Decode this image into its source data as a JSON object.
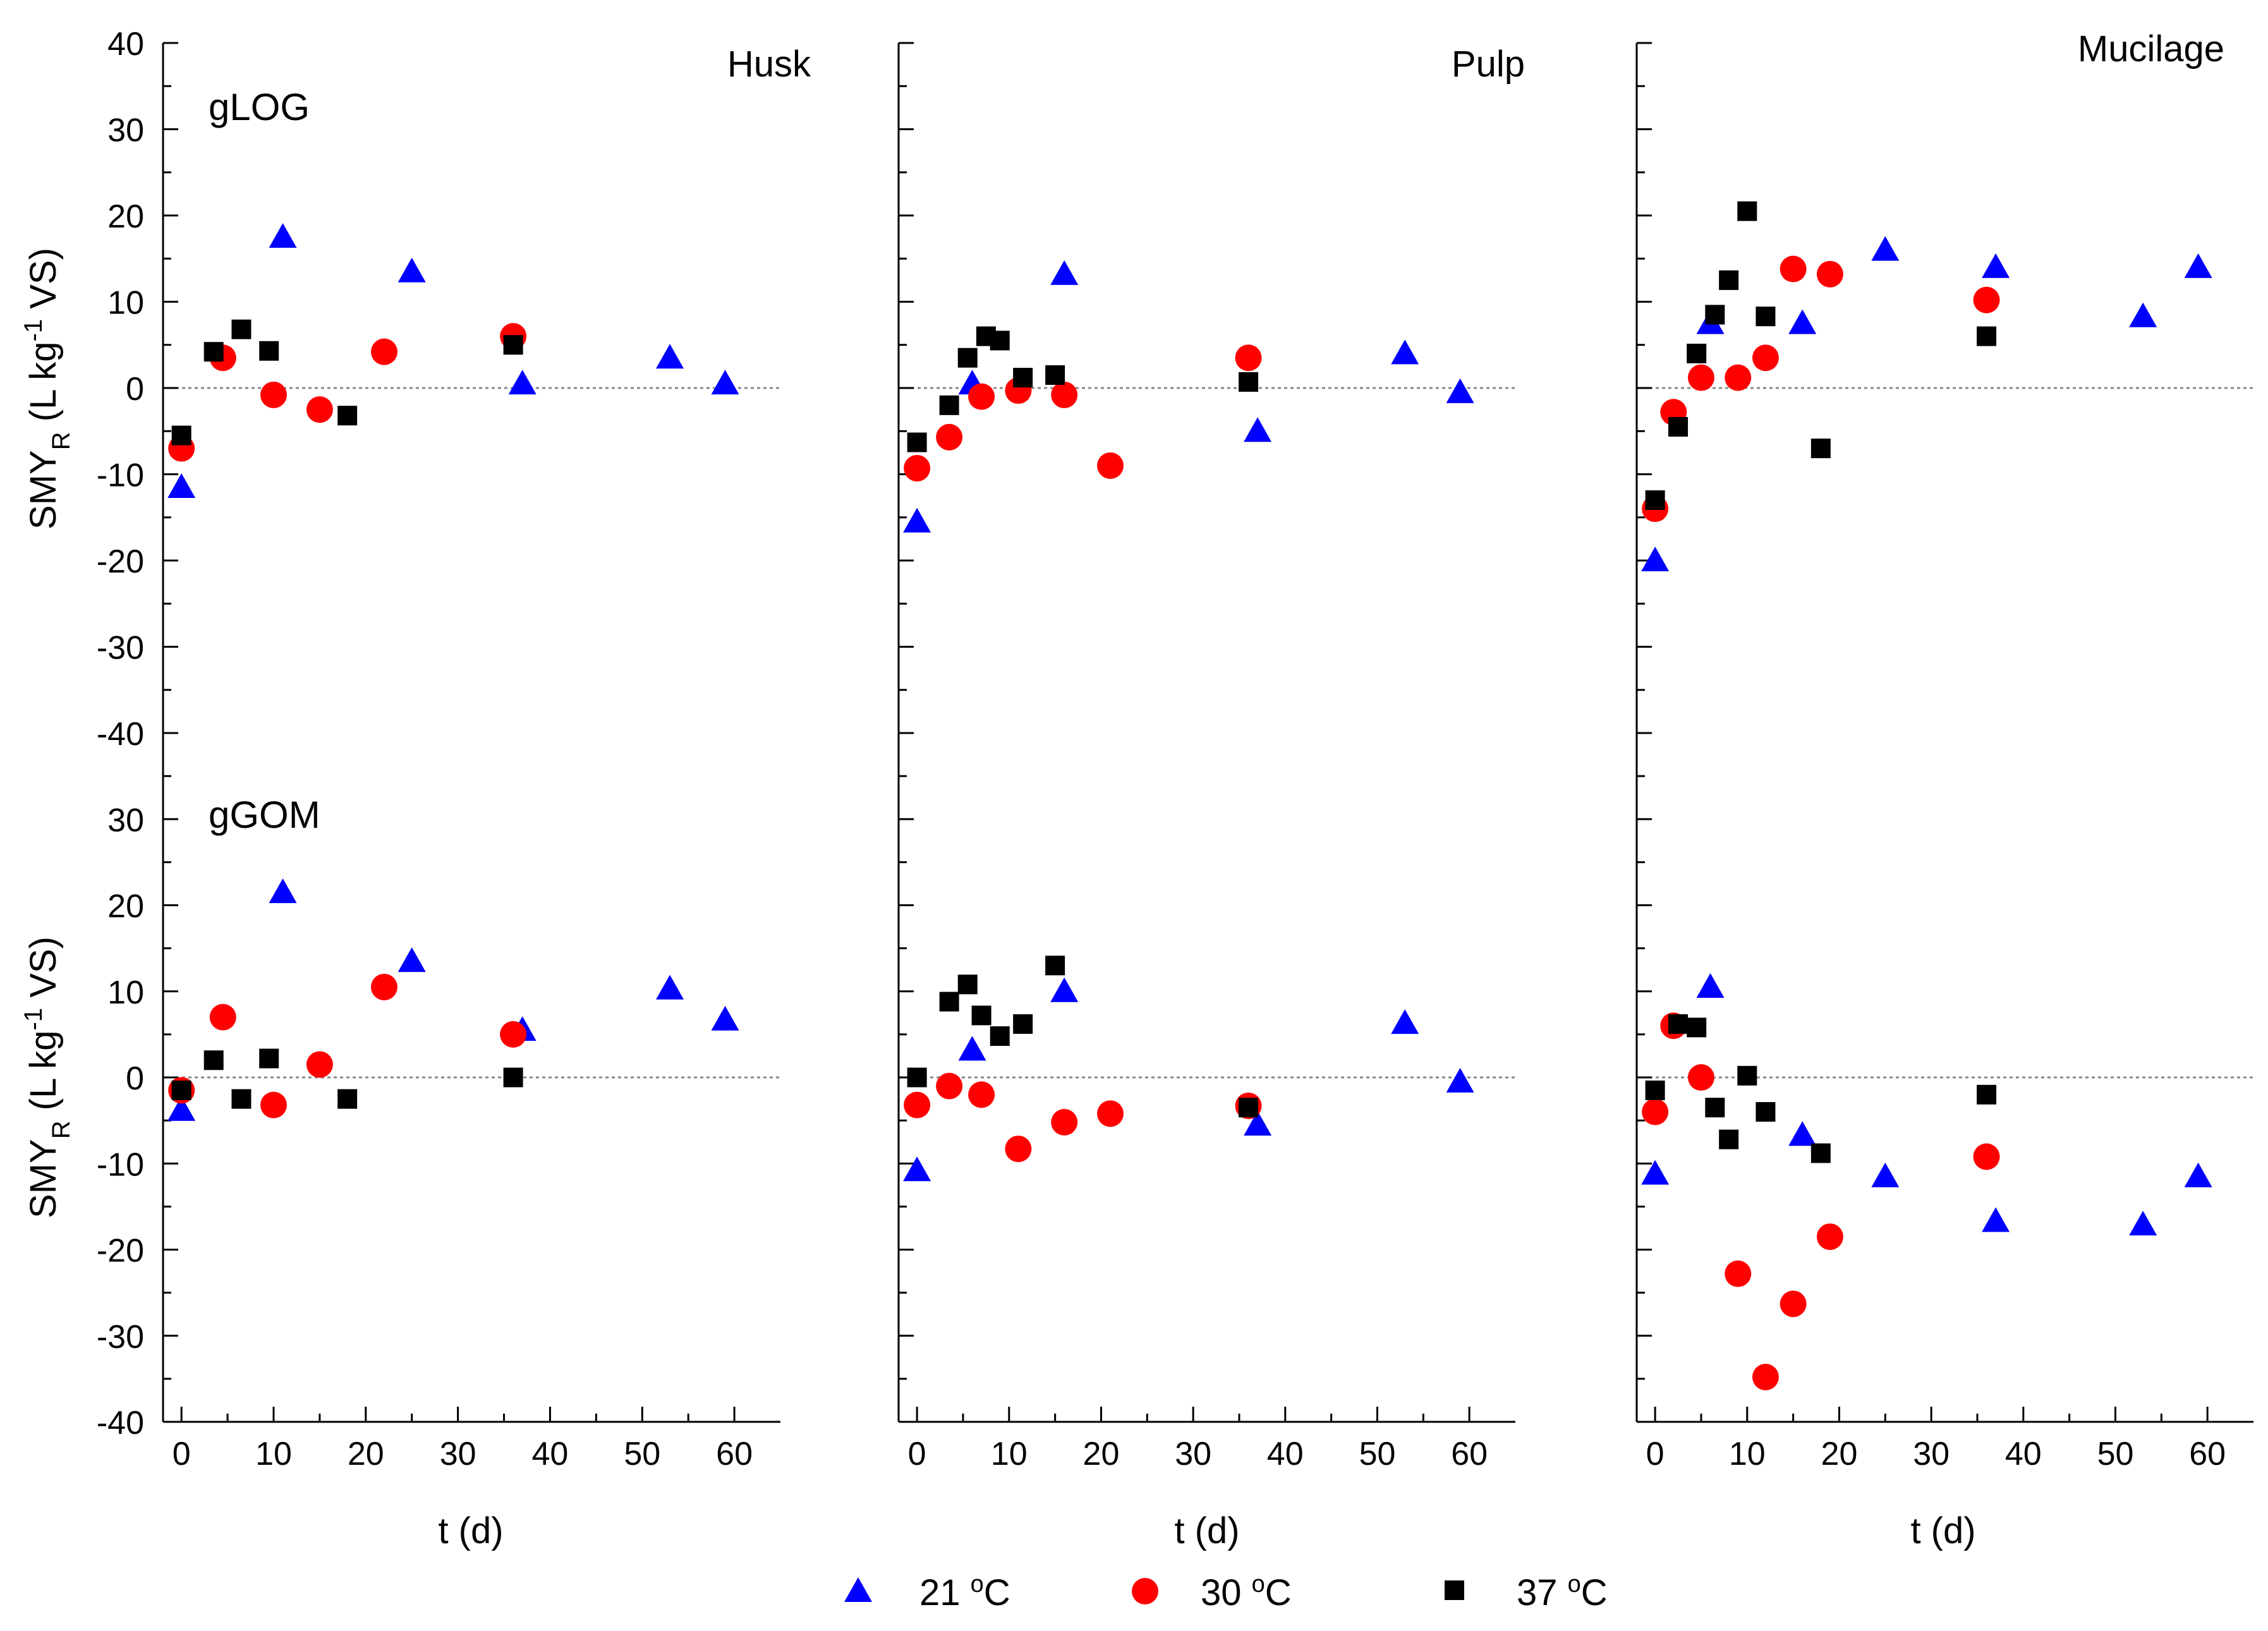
{
  "chart_data": {
    "type": "scatter",
    "layout": "2 rows x 3 columns, shared axes",
    "xlabel": "t (d)",
    "ylabel_main": "SMY",
    "ylabel_sub": "R",
    "ylabel_tail": " (L kg",
    "ylabel_sup": "-1",
    "ylabel_end": " VS)",
    "xlim": [
      -2,
      65
    ],
    "ylim": [
      -40,
      40
    ],
    "x_ticks": [
      "0",
      "10",
      "20",
      "30",
      "40",
      "50",
      "60"
    ],
    "y_ticks_top": [
      "40",
      "30",
      "20",
      "10",
      "0",
      "-10",
      "-20",
      "-30",
      "-40"
    ],
    "y_ticks_bottom": [
      "30",
      "20",
      "10",
      "0",
      "-10",
      "-20",
      "-30",
      "-40"
    ],
    "column_titles": [
      "Husk",
      "Pulp",
      "Mucilage"
    ],
    "row_labels": [
      "gLOG",
      "gGOM"
    ],
    "legend": [
      {
        "name": "21",
        "unit_sup": "o",
        "unit": "C",
        "marker": "triangle",
        "color": "#0000ff"
      },
      {
        "name": "30",
        "unit_sup": "o",
        "unit": "C",
        "marker": "circle",
        "color": "#ff0000"
      },
      {
        "name": "37",
        "unit_sup": "o",
        "unit": "C",
        "marker": "square",
        "color": "#000000"
      }
    ],
    "panels": [
      {
        "row": "gLOG",
        "column": "Husk",
        "series": [
          {
            "name": "21 oC",
            "points": [
              [
                0,
                -11.5
              ],
              [
                11,
                17.5
              ],
              [
                25,
                13.5
              ],
              [
                37,
                0.5
              ],
              [
                53,
                3.5
              ],
              [
                59,
                0.5
              ]
            ]
          },
          {
            "name": "30 oC",
            "points": [
              [
                0,
                -7
              ],
              [
                4.5,
                3.5
              ],
              [
                10,
                -0.8
              ],
              [
                15,
                -2.5
              ],
              [
                22,
                4.2
              ],
              [
                36,
                6
              ]
            ]
          },
          {
            "name": "37 oC",
            "points": [
              [
                0,
                -5.5
              ],
              [
                3.5,
                4.2
              ],
              [
                6.5,
                6.8
              ],
              [
                9.5,
                4.3
              ],
              [
                18,
                -3.2
              ],
              [
                36,
                5
              ]
            ]
          }
        ]
      },
      {
        "row": "gLOG",
        "column": "Pulp",
        "series": [
          {
            "name": "21 oC",
            "points": [
              [
                0,
                -15.5
              ],
              [
                6,
                0.5
              ],
              [
                16,
                13.2
              ],
              [
                37,
                -5
              ],
              [
                53,
                4
              ],
              [
                59,
                -0.5
              ]
            ]
          },
          {
            "name": "30 oC",
            "points": [
              [
                0,
                -9.3
              ],
              [
                3.5,
                -5.7
              ],
              [
                7,
                -1
              ],
              [
                11,
                -0.3
              ],
              [
                16,
                -0.8
              ],
              [
                21,
                -9
              ],
              [
                36,
                3.5
              ]
            ]
          },
          {
            "name": "37 oC",
            "points": [
              [
                0,
                -6.3
              ],
              [
                3.5,
                -2
              ],
              [
                5.5,
                3.5
              ],
              [
                7.5,
                6
              ],
              [
                9,
                5.5
              ],
              [
                11.5,
                1.2
              ],
              [
                15,
                1.5
              ],
              [
                36,
                0.7
              ]
            ]
          }
        ]
      },
      {
        "row": "gLOG",
        "column": "Mucilage",
        "series": [
          {
            "name": "21 oC",
            "points": [
              [
                0,
                -20
              ],
              [
                6,
                7.5
              ],
              [
                16,
                7.5
              ],
              [
                25,
                16
              ],
              [
                37,
                14
              ],
              [
                53,
                8.3
              ],
              [
                59,
                14
              ]
            ]
          },
          {
            "name": "30 oC",
            "points": [
              [
                0,
                -14
              ],
              [
                2,
                -2.8
              ],
              [
                5,
                1.2
              ],
              [
                9,
                1.2
              ],
              [
                12,
                3.5
              ],
              [
                15,
                13.8
              ],
              [
                19,
                13.2
              ],
              [
                36,
                10.2
              ]
            ]
          },
          {
            "name": "37 oC",
            "points": [
              [
                0,
                -13
              ],
              [
                2.5,
                -4.5
              ],
              [
                4.5,
                4
              ],
              [
                6.5,
                8.5
              ],
              [
                8,
                12.5
              ],
              [
                10,
                20.5
              ],
              [
                12,
                8.3
              ],
              [
                18,
                -7
              ],
              [
                36,
                6
              ]
            ]
          }
        ]
      },
      {
        "row": "gGOM",
        "column": "Husk",
        "series": [
          {
            "name": "21 oC",
            "points": [
              [
                0,
                -3.8
              ],
              [
                11,
                21.5
              ],
              [
                25,
                13.5
              ],
              [
                37,
                5.5
              ],
              [
                53,
                10.3
              ],
              [
                59,
                6.7
              ]
            ]
          },
          {
            "name": "30 oC",
            "points": [
              [
                0,
                -1.5
              ],
              [
                4.5,
                7
              ],
              [
                10,
                -3.2
              ],
              [
                15,
                1.5
              ],
              [
                22,
                10.5
              ],
              [
                36,
                5
              ]
            ]
          },
          {
            "name": "37 oC",
            "points": [
              [
                0,
                -1.5
              ],
              [
                3.5,
                2
              ],
              [
                6.5,
                -2.5
              ],
              [
                9.5,
                2.2
              ],
              [
                18,
                -2.5
              ],
              [
                36,
                0
              ]
            ]
          }
        ]
      },
      {
        "row": "gGOM",
        "column": "Pulp",
        "series": [
          {
            "name": "21 oC",
            "points": [
              [
                0,
                -10.8
              ],
              [
                6,
                3.2
              ],
              [
                16,
                10
              ],
              [
                37,
                -5.5
              ],
              [
                53,
                6.3
              ],
              [
                59,
                -0.5
              ]
            ]
          },
          {
            "name": "30 oC",
            "points": [
              [
                0,
                -3.2
              ],
              [
                3.5,
                -1
              ],
              [
                7,
                -2
              ],
              [
                11,
                -8.3
              ],
              [
                16,
                -5.2
              ],
              [
                21,
                -4.2
              ],
              [
                36,
                -3.3
              ]
            ]
          },
          {
            "name": "37 oC",
            "points": [
              [
                0,
                0
              ],
              [
                3.5,
                8.8
              ],
              [
                5.5,
                10.8
              ],
              [
                7,
                7.2
              ],
              [
                9,
                4.8
              ],
              [
                11.5,
                6.2
              ],
              [
                15,
                13
              ],
              [
                36,
                -3.5
              ]
            ]
          }
        ]
      },
      {
        "row": "gGOM",
        "column": "Mucilage",
        "series": [
          {
            "name": "21 oC",
            "points": [
              [
                0,
                -11.2
              ],
              [
                6,
                10.5
              ],
              [
                16,
                -6.7
              ],
              [
                25,
                -11.5
              ],
              [
                37,
                -16.7
              ],
              [
                53,
                -17.1
              ],
              [
                59,
                -11.5
              ]
            ]
          },
          {
            "name": "30 oC",
            "points": [
              [
                0,
                -4
              ],
              [
                2,
                6
              ],
              [
                5,
                0
              ],
              [
                9,
                -22.8
              ],
              [
                12,
                -34.8
              ],
              [
                15,
                -26.3
              ],
              [
                19,
                -18.5
              ],
              [
                36,
                -9.2
              ]
            ]
          },
          {
            "name": "37 oC",
            "points": [
              [
                0,
                -1.5
              ],
              [
                2.5,
                6.2
              ],
              [
                4.5,
                5.8
              ],
              [
                6.5,
                -3.5
              ],
              [
                8,
                -7.2
              ],
              [
                10,
                0.2
              ],
              [
                12,
                -4
              ],
              [
                18,
                -8.8
              ],
              [
                36,
                -2
              ]
            ]
          }
        ]
      }
    ]
  }
}
